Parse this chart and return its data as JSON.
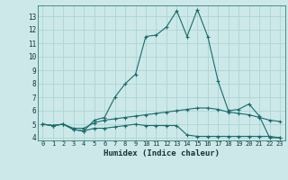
{
  "title": "",
  "xlabel": "Humidex (Indice chaleur)",
  "bg_color": "#cce8e8",
  "line_color": "#1a6b6b",
  "grid_color": "#aed4d4",
  "x_values": [
    0,
    1,
    2,
    3,
    4,
    5,
    6,
    7,
    8,
    9,
    10,
    11,
    12,
    13,
    14,
    15,
    16,
    17,
    18,
    19,
    20,
    21,
    22,
    23
  ],
  "y_max": [
    5.0,
    4.9,
    5.0,
    4.6,
    4.5,
    5.3,
    5.5,
    7.0,
    8.0,
    8.7,
    11.5,
    11.6,
    12.2,
    13.4,
    11.5,
    13.5,
    11.5,
    8.2,
    6.0,
    6.1,
    6.5,
    5.6,
    4.0,
    4.0
  ],
  "y_mid": [
    5.0,
    4.9,
    5.0,
    4.7,
    4.7,
    5.1,
    5.3,
    5.4,
    5.5,
    5.6,
    5.7,
    5.8,
    5.9,
    6.0,
    6.1,
    6.2,
    6.2,
    6.1,
    5.9,
    5.8,
    5.7,
    5.5,
    5.3,
    5.2
  ],
  "y_min": [
    5.0,
    4.9,
    5.0,
    4.6,
    4.5,
    4.7,
    4.7,
    4.8,
    4.9,
    5.0,
    4.9,
    4.9,
    4.9,
    4.9,
    4.2,
    4.1,
    4.1,
    4.1,
    4.1,
    4.1,
    4.1,
    4.1,
    4.1,
    4.0
  ],
  "ylim": [
    3.8,
    13.8
  ],
  "yticks": [
    4,
    5,
    6,
    7,
    8,
    9,
    10,
    11,
    12,
    13
  ],
  "xlim": [
    -0.5,
    23.5
  ],
  "xticks": [
    0,
    1,
    2,
    3,
    4,
    5,
    6,
    7,
    8,
    9,
    10,
    11,
    12,
    13,
    14,
    15,
    16,
    17,
    18,
    19,
    20,
    21,
    22,
    23
  ]
}
